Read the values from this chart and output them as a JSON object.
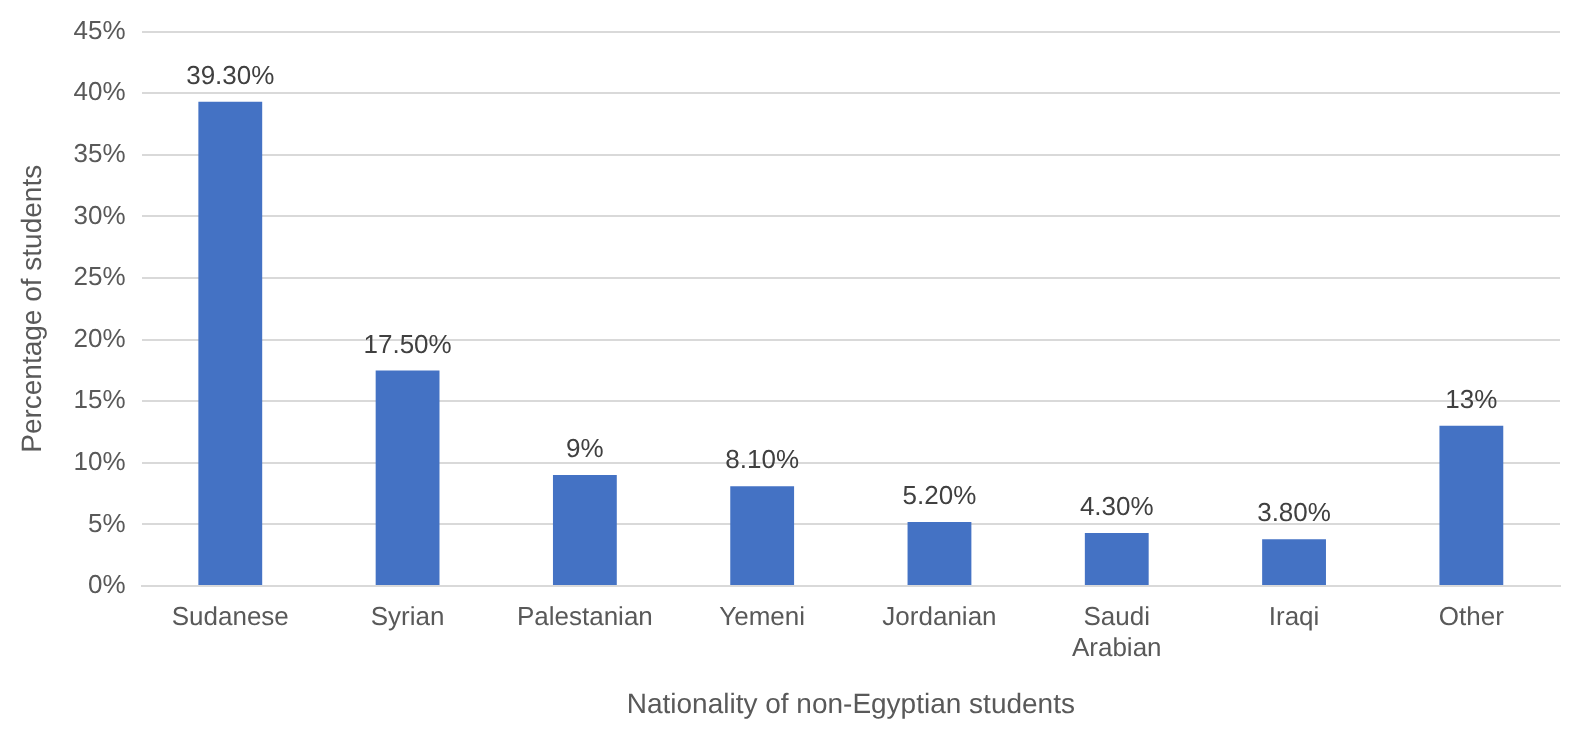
{
  "chart_data": {
    "type": "bar",
    "xlabel": "Nationality of non-Egyptian students",
    "ylabel": "Percentage of students",
    "categories": [
      "Sudanese",
      "Syrian",
      "Palestanian",
      "Yemeni",
      "Jordanian",
      "Saudi Arabian",
      "Iraqi",
      "Other"
    ],
    "values": [
      39.3,
      17.5,
      9,
      8.1,
      5.2,
      4.3,
      3.8,
      13
    ],
    "value_labels": [
      "39.30%",
      "17.50%",
      "9%",
      "8.10%",
      "5.20%",
      "4.30%",
      "3.80%",
      "13%"
    ],
    "color": "#4472c4",
    "ylim": [
      0,
      45
    ],
    "yticks": [
      {
        "value": 0,
        "label": "0%"
      },
      {
        "value": 5,
        "label": "5%"
      },
      {
        "value": 10,
        "label": "10%"
      },
      {
        "value": 15,
        "label": "15%"
      },
      {
        "value": 20,
        "label": "20%"
      },
      {
        "value": 25,
        "label": "25%"
      },
      {
        "value": 30,
        "label": "30%"
      },
      {
        "value": 35,
        "label": "35%"
      },
      {
        "value": 40,
        "label": "40%"
      },
      {
        "value": 45,
        "label": "45%"
      }
    ],
    "grid": "y",
    "legend": false
  }
}
